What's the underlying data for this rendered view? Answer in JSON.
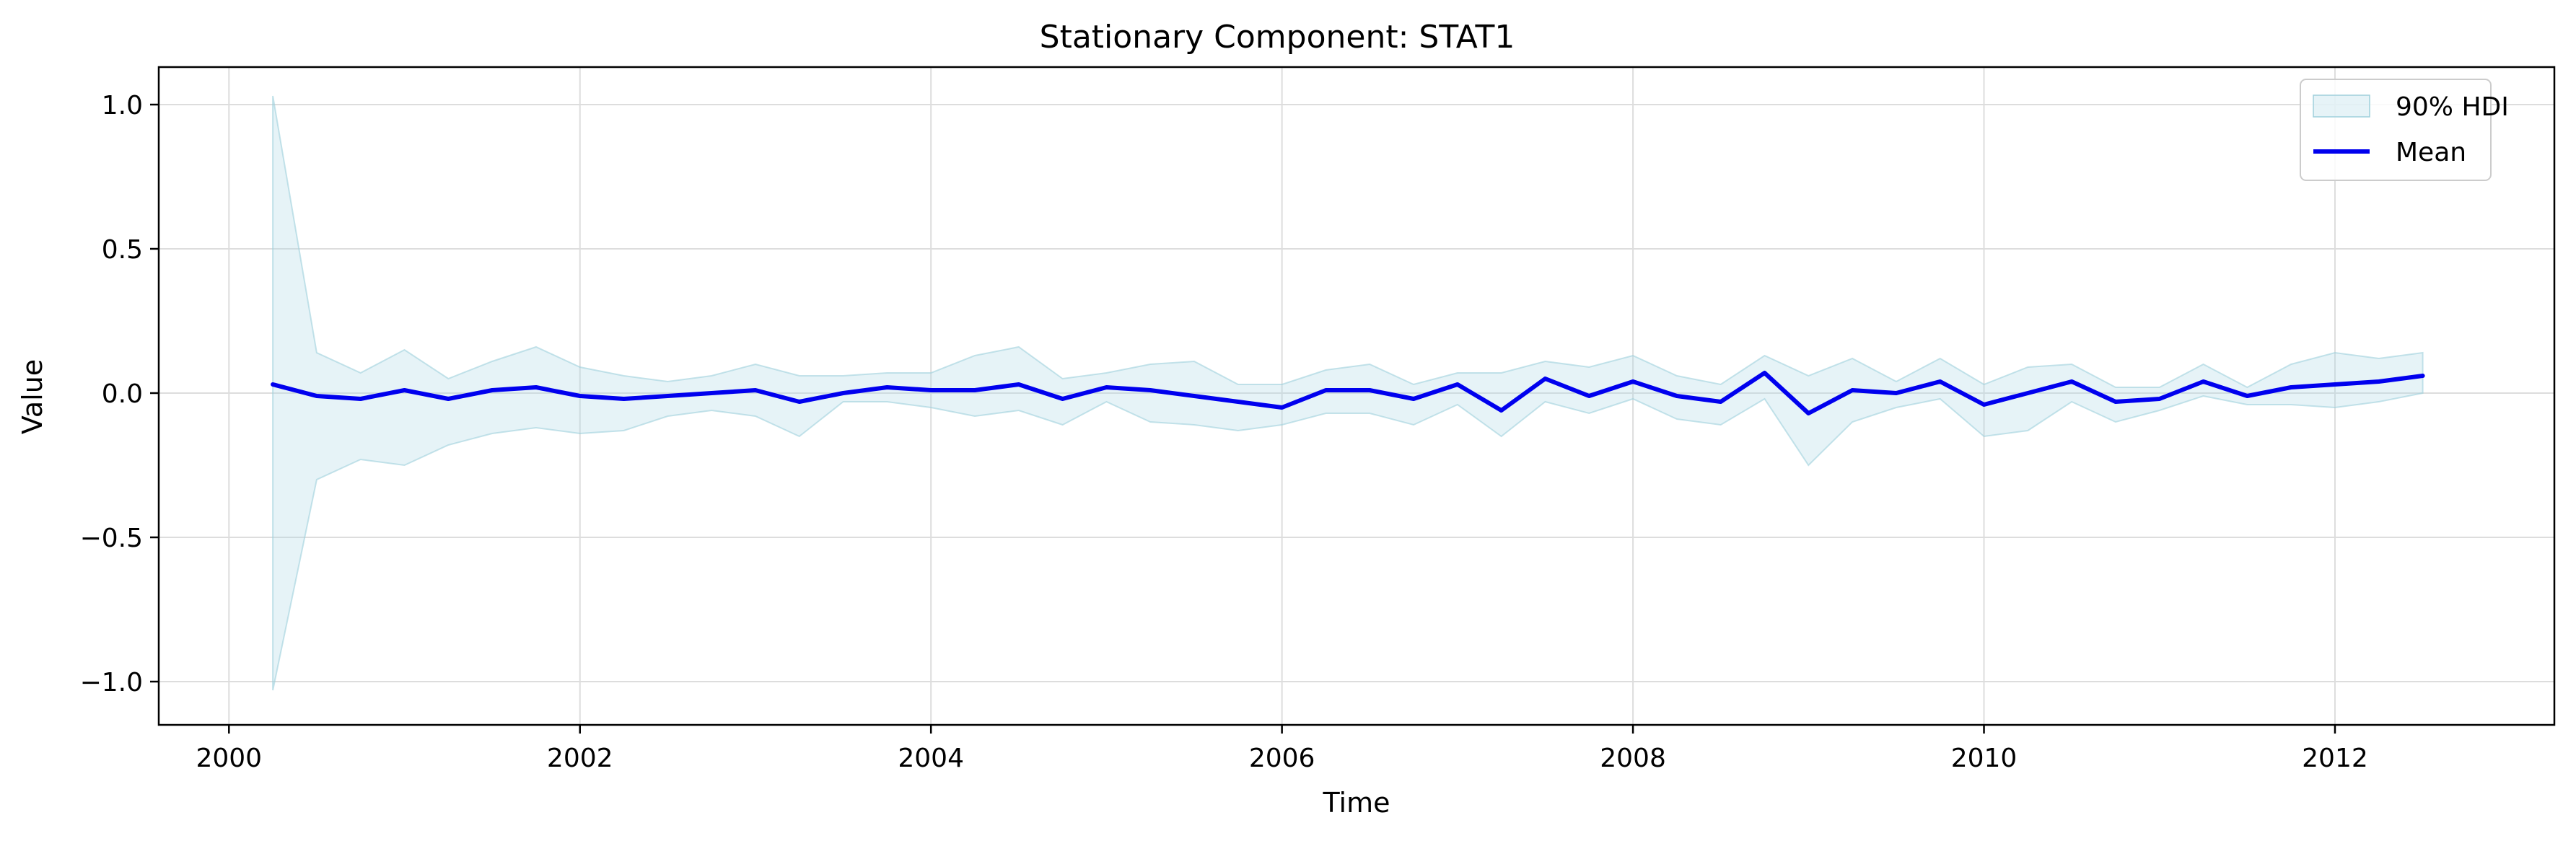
{
  "chart_data": {
    "type": "line",
    "title": "Stationary Component: STAT1",
    "xlabel": "Time",
    "ylabel": "Value",
    "xlim": [
      1999.6,
      2013.25
    ],
    "ylim": [
      -1.15,
      1.13
    ],
    "x_ticks": [
      2000,
      2002,
      2004,
      2006,
      2008,
      2010,
      2012
    ],
    "x_tick_labels": [
      "2000",
      "2002",
      "2004",
      "2006",
      "2008",
      "2010",
      "2012"
    ],
    "y_ticks": [
      1.0,
      0.5,
      0.0,
      -0.5,
      -1.0
    ],
    "y_tick_labels": [
      "1.0",
      "0.5",
      "0.0",
      "−0.5",
      "−1.0"
    ],
    "grid": true,
    "legend_position": "top-right",
    "colors": {
      "mean": "#0000ee",
      "band_fill": "#add8e6",
      "band_edge": "#9fd0dc",
      "grid": "#dddddd"
    },
    "series": [
      {
        "name": "90% HDI",
        "kind": "band",
        "x": [
          2000.25,
          2000.5,
          2000.75,
          2001.0,
          2001.25,
          2001.5,
          2001.75,
          2002.0,
          2002.25,
          2002.5,
          2002.75,
          2003.0,
          2003.25,
          2003.5,
          2003.75,
          2004.0,
          2004.25,
          2004.5,
          2004.75,
          2005.0,
          2005.25,
          2005.5,
          2005.75,
          2006.0,
          2006.25,
          2006.5,
          2006.75,
          2007.0,
          2007.25,
          2007.5,
          2007.75,
          2008.0,
          2008.25,
          2008.5,
          2008.75,
          2009.0,
          2009.25,
          2009.5,
          2009.75,
          2010.0,
          2010.25,
          2010.5,
          2010.75,
          2011.0,
          2011.25,
          2011.5,
          2011.75,
          2012.0,
          2012.25,
          2012.5
        ],
        "upper": [
          1.03,
          0.14,
          0.07,
          0.15,
          0.05,
          0.11,
          0.16,
          0.09,
          0.06,
          0.04,
          0.06,
          0.1,
          0.06,
          0.06,
          0.07,
          0.07,
          0.13,
          0.16,
          0.05,
          0.07,
          0.1,
          0.11,
          0.03,
          0.03,
          0.08,
          0.1,
          0.03,
          0.07,
          0.07,
          0.11,
          0.09,
          0.13,
          0.06,
          0.03,
          0.13,
          0.06,
          0.12,
          0.04,
          0.12,
          0.03,
          0.09,
          0.1,
          0.02,
          0.02,
          0.1,
          0.02,
          0.1,
          0.14,
          0.12,
          0.14
        ],
        "lower": [
          -1.03,
          -0.3,
          -0.23,
          -0.25,
          -0.18,
          -0.14,
          -0.12,
          -0.14,
          -0.13,
          -0.08,
          -0.06,
          -0.08,
          -0.15,
          -0.03,
          -0.03,
          -0.05,
          -0.08,
          -0.06,
          -0.11,
          -0.03,
          -0.1,
          -0.11,
          -0.13,
          -0.11,
          -0.07,
          -0.07,
          -0.11,
          -0.04,
          -0.15,
          -0.03,
          -0.07,
          -0.02,
          -0.09,
          -0.11,
          -0.02,
          -0.25,
          -0.1,
          -0.05,
          -0.02,
          -0.15,
          -0.13,
          -0.03,
          -0.1,
          -0.06,
          -0.01,
          -0.04,
          -0.04,
          -0.05,
          -0.03,
          0.0
        ]
      },
      {
        "name": "Mean",
        "kind": "line",
        "x": [
          2000.25,
          2000.5,
          2000.75,
          2001.0,
          2001.25,
          2001.5,
          2001.75,
          2002.0,
          2002.25,
          2002.5,
          2002.75,
          2003.0,
          2003.25,
          2003.5,
          2003.75,
          2004.0,
          2004.25,
          2004.5,
          2004.75,
          2005.0,
          2005.25,
          2005.5,
          2005.75,
          2006.0,
          2006.25,
          2006.5,
          2006.75,
          2007.0,
          2007.25,
          2007.5,
          2007.75,
          2008.0,
          2008.25,
          2008.5,
          2008.75,
          2009.0,
          2009.25,
          2009.5,
          2009.75,
          2010.0,
          2010.25,
          2010.5,
          2010.75,
          2011.0,
          2011.25,
          2011.5,
          2011.75,
          2012.0,
          2012.25,
          2012.5
        ],
        "values": [
          0.03,
          -0.01,
          -0.02,
          0.01,
          -0.02,
          0.01,
          0.02,
          -0.01,
          -0.02,
          -0.01,
          0.0,
          0.01,
          -0.03,
          0.0,
          0.02,
          0.01,
          0.01,
          0.03,
          -0.02,
          0.02,
          0.01,
          -0.01,
          -0.03,
          -0.05,
          0.01,
          0.01,
          -0.02,
          0.03,
          -0.06,
          0.05,
          -0.01,
          0.04,
          -0.01,
          -0.03,
          0.07,
          -0.07,
          0.01,
          0.0,
          0.04,
          -0.04,
          0.0,
          0.04,
          -0.03,
          -0.02,
          0.04,
          -0.01,
          0.02,
          0.03,
          0.04,
          0.06
        ]
      }
    ]
  }
}
